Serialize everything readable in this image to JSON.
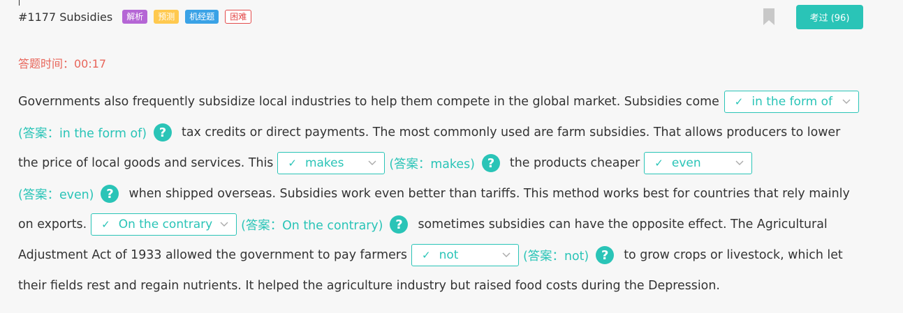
{
  "header": {
    "title": "#1177 Subsidies",
    "tags": [
      "解析",
      "预测",
      "机经题",
      "困难"
    ],
    "exam_button": "考过 (96)"
  },
  "timer": "答题时间：00:17",
  "passage": {
    "lines": [
      [
        "Governments also frequently subsidize local industries to help them compete in the global market. Subsidies come"
      ],
      [
        "tax credits or direct payments. The most commonly used are farm subsidies. That allows producers to lower"
      ],
      [
        "the price of local goods and services. This",
        "the products cheaper"
      ],
      [
        "when shipped overseas. Subsidies work even better than tariffs. This method works best for countries that rely mainly"
      ],
      [
        "on exports.",
        "sometimes subsidies can have the opposite effect. The Agricultural"
      ],
      [
        "Adjustment Act of 1933 allowed the government to pay farmers",
        "to grow crops or livestock, which let"
      ],
      [
        "their fields rest and regain nutrients. It helped the agriculture industry but raised food costs during the Depression."
      ]
    ],
    "blanks": [
      {
        "selected": "in the form of",
        "answer": "(答案：in the form of)"
      },
      {
        "selected": "makes",
        "answer": "(答案：makes)"
      },
      {
        "selected": "even",
        "answer": "(答案：even)"
      },
      {
        "selected": "On the contrary",
        "answer": "(答案：On the contrary)"
      },
      {
        "selected": "not",
        "answer": "(答案：not)"
      }
    ],
    "help_glyph": "?",
    "check_glyph": "✓"
  },
  "icons": [
    "bookmark-icon",
    "check-icon",
    "chevron-down-icon",
    "help-icon"
  ],
  "colors": {
    "accent": "#2ac4b7",
    "timer": "#e8655a",
    "tag_analysis": "#b566d5",
    "tag_predict": "#ffc94f",
    "tag_question": "#3aa2e6",
    "tag_hard": "#e34b4b"
  }
}
